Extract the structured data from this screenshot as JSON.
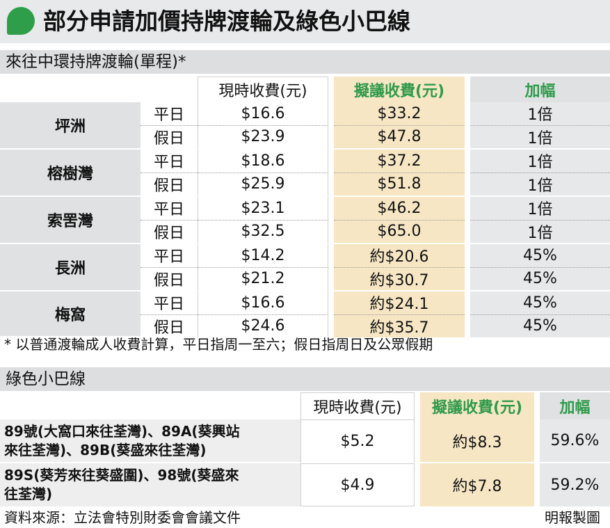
{
  "title": "部分申請加價持牌渡輪及綠色小巴線",
  "accent_color": "#2f9e4a",
  "ferry": {
    "heading": "來往中環持牌渡輪(單程)*",
    "columns": {
      "current": "現時收費(元)",
      "proposed": "擬議收費(元)",
      "increase": "加幅"
    },
    "rows": [
      {
        "place": "坪洲",
        "weekday": {
          "label": "平日",
          "current": "$16.6",
          "proposed": "$33.2",
          "increase": "1倍"
        },
        "holiday": {
          "label": "假日",
          "current": "$23.9",
          "proposed": "$47.8",
          "increase": "1倍"
        }
      },
      {
        "place": "榕樹灣",
        "weekday": {
          "label": "平日",
          "current": "$18.6",
          "proposed": "$37.2",
          "increase": "1倍"
        },
        "holiday": {
          "label": "假日",
          "current": "$25.9",
          "proposed": "$51.8",
          "increase": "1倍"
        }
      },
      {
        "place": "索罟灣",
        "weekday": {
          "label": "平日",
          "current": "$23.1",
          "proposed": "$46.2",
          "increase": "1倍"
        },
        "holiday": {
          "label": "假日",
          "current": "$32.5",
          "proposed": "$65.0",
          "increase": "1倍"
        }
      },
      {
        "place": "長洲",
        "weekday": {
          "label": "平日",
          "current": "$14.2",
          "proposed": "約$20.6",
          "increase": "45%"
        },
        "holiday": {
          "label": "假日",
          "current": "$21.2",
          "proposed": "約$30.7",
          "increase": "45%"
        }
      },
      {
        "place": "梅窩",
        "weekday": {
          "label": "平日",
          "current": "$16.6",
          "proposed": "約$24.1",
          "increase": "45%"
        },
        "holiday": {
          "label": "假日",
          "current": "$24.6",
          "proposed": "約$35.7",
          "increase": "45%"
        }
      }
    ],
    "footnote": "* 以普通渡輪成人收費計算，平日指周一至六；假日指周日及公眾假期"
  },
  "minibus": {
    "heading": "綠色小巴線",
    "columns": {
      "current": "現時收費(元)",
      "proposed": "擬議收費(元)",
      "increase": "加幅"
    },
    "rows": [
      {
        "route_line1": "89號(大窩口來往荃灣)、89A(葵興站",
        "route_line2": "來往荃灣)、89B(葵盛來往荃灣)",
        "current": "$5.2",
        "proposed": "約$8.3",
        "increase": "59.6%"
      },
      {
        "route_line1": "89S(葵芳來往葵盛圍)、98號(葵盛來",
        "route_line2": "往荃灣)",
        "current": "$4.9",
        "proposed": "約$7.8",
        "increase": "59.2%"
      }
    ]
  },
  "source": "資料來源：立法會特別財委會會議文件",
  "credit": "明報製圖"
}
